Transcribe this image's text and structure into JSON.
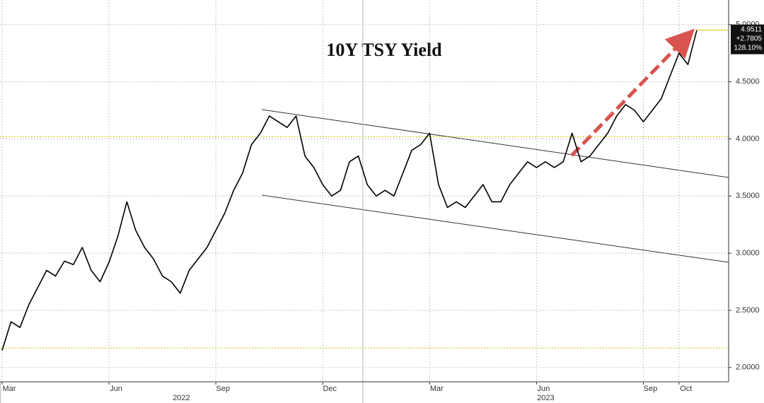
{
  "chart_data": {
    "type": "line",
    "title": "10Y TSY Yield",
    "categories": [
      "Mar",
      null,
      null,
      null,
      null,
      null,
      null,
      null,
      null,
      null,
      null,
      null,
      "Jun",
      null,
      null,
      null,
      null,
      null,
      null,
      null,
      null,
      null,
      null,
      null,
      "Sep",
      null,
      null,
      null,
      null,
      null,
      null,
      null,
      null,
      null,
      null,
      null,
      "Dec",
      null,
      null,
      null,
      null,
      null,
      null,
      null,
      null,
      null,
      null,
      null,
      "Mar",
      null,
      null,
      null,
      null,
      null,
      null,
      null,
      null,
      null,
      null,
      null,
      "Jun",
      null,
      null,
      null,
      null,
      null,
      null,
      null,
      null,
      null,
      null,
      null,
      "Sep",
      null,
      null,
      null,
      "Oct",
      null,
      null
    ],
    "values": [
      2.15,
      2.4,
      2.35,
      2.55,
      2.7,
      2.85,
      2.8,
      2.93,
      2.9,
      3.05,
      2.85,
      2.75,
      2.92,
      3.15,
      3.45,
      3.2,
      3.05,
      2.95,
      2.8,
      2.75,
      2.65,
      2.85,
      2.95,
      3.05,
      3.2,
      3.35,
      3.55,
      3.7,
      3.95,
      4.05,
      4.2,
      4.15,
      4.1,
      4.2,
      3.85,
      3.75,
      3.6,
      3.5,
      3.55,
      3.8,
      3.85,
      3.6,
      3.5,
      3.55,
      3.5,
      3.7,
      3.9,
      3.95,
      4.05,
      3.6,
      3.4,
      3.45,
      3.4,
      3.5,
      3.6,
      3.45,
      3.45,
      3.6,
      3.7,
      3.8,
      3.75,
      3.8,
      3.75,
      3.8,
      4.05,
      3.8,
      3.85,
      3.95,
      4.05,
      4.2,
      4.3,
      4.25,
      4.15,
      4.25,
      4.35,
      4.55,
      4.75,
      4.65,
      4.9511
    ],
    "color": "#000000",
    "year_labels": [
      "2022",
      "2023"
    ],
    "ylim": [
      1.875,
      5.215
    ],
    "yticks": [
      {
        "value": 2,
        "label": "2.0000"
      },
      {
        "value": 2.5,
        "label": "2.5000"
      },
      {
        "value": 3,
        "label": "3.0000"
      },
      {
        "value": 3.5,
        "label": "3.5000"
      },
      {
        "value": 4,
        "label": "4.0000"
      },
      {
        "value": 4.5,
        "label": "4.5000"
      },
      {
        "value": 5,
        "label": "5.0000"
      }
    ],
    "hlines": [
      4.02,
      2.17
    ],
    "last_value_box": [
      "4.9511",
      "+2.7805",
      "128.10%"
    ],
    "grid": true
  }
}
